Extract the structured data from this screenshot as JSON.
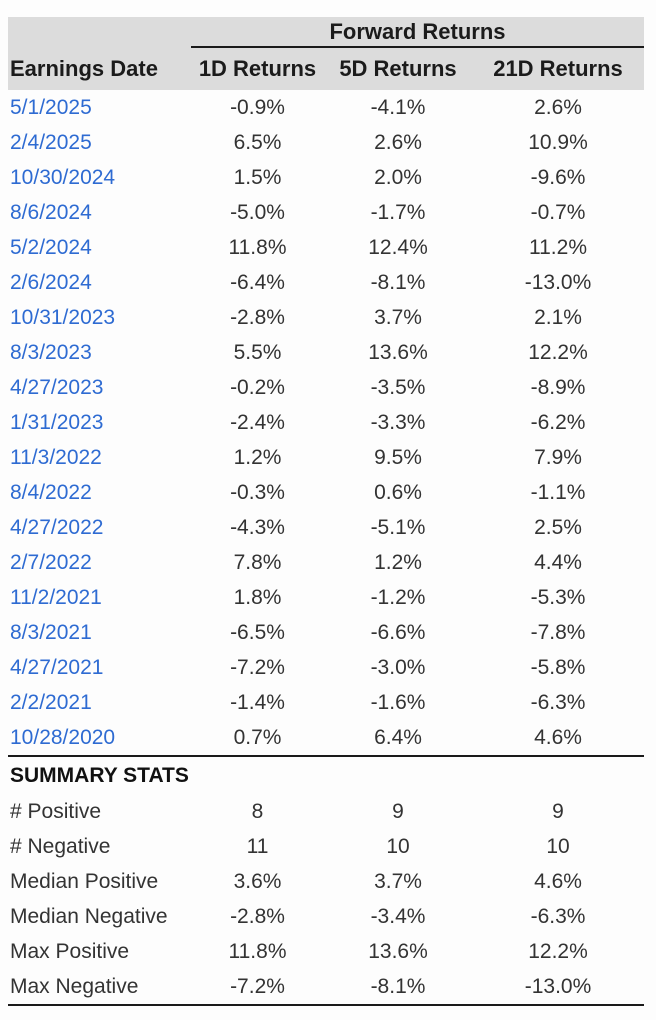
{
  "colors": {
    "page_background": "#fdfdfd",
    "header_background": "#dcdcdc",
    "rule": "#1a1a1a",
    "date_link": "#2e6bd2",
    "value_text": "#333333"
  },
  "table": {
    "group_header": "Forward Returns",
    "columns": [
      "Earnings Date",
      "1D Returns",
      "5D Returns",
      "21D Returns"
    ],
    "rows": [
      [
        "5/1/2025",
        "-0.9%",
        "-4.1%",
        "2.6%"
      ],
      [
        "2/4/2025",
        "6.5%",
        "2.6%",
        "10.9%"
      ],
      [
        "10/30/2024",
        "1.5%",
        "2.0%",
        "-9.6%"
      ],
      [
        "8/6/2024",
        "-5.0%",
        "-1.7%",
        "-0.7%"
      ],
      [
        "5/2/2024",
        "11.8%",
        "12.4%",
        "11.2%"
      ],
      [
        "2/6/2024",
        "-6.4%",
        "-8.1%",
        "-13.0%"
      ],
      [
        "10/31/2023",
        "-2.8%",
        "3.7%",
        "2.1%"
      ],
      [
        "8/3/2023",
        "5.5%",
        "13.6%",
        "12.2%"
      ],
      [
        "4/27/2023",
        "-0.2%",
        "-3.5%",
        "-8.9%"
      ],
      [
        "1/31/2023",
        "-2.4%",
        "-3.3%",
        "-6.2%"
      ],
      [
        "11/3/2022",
        "1.2%",
        "9.5%",
        "7.9%"
      ],
      [
        "8/4/2022",
        "-0.3%",
        "0.6%",
        "-1.1%"
      ],
      [
        "4/27/2022",
        "-4.3%",
        "-5.1%",
        "2.5%"
      ],
      [
        "2/7/2022",
        "7.8%",
        "1.2%",
        "4.4%"
      ],
      [
        "11/2/2021",
        "1.8%",
        "-1.2%",
        "-5.3%"
      ],
      [
        "8/3/2021",
        "-6.5%",
        "-6.6%",
        "-7.8%"
      ],
      [
        "4/27/2021",
        "-7.2%",
        "-3.0%",
        "-5.8%"
      ],
      [
        "2/2/2021",
        "-1.4%",
        "-1.6%",
        "-6.3%"
      ],
      [
        "10/28/2020",
        "0.7%",
        "6.4%",
        "4.6%"
      ]
    ],
    "summary_title": "SUMMARY STATS",
    "summary_rows": [
      [
        "# Positive",
        "8",
        "9",
        "9"
      ],
      [
        "# Negative",
        "11",
        "10",
        "10"
      ],
      [
        "Median Positive",
        "3.6%",
        "3.7%",
        "4.6%"
      ],
      [
        "Median Negative",
        "-2.8%",
        "-3.4%",
        "-6.3%"
      ],
      [
        "Max Positive",
        "11.8%",
        "13.6%",
        "12.2%"
      ],
      [
        "Max Negative",
        "-7.2%",
        "-8.1%",
        "-13.0%"
      ]
    ]
  }
}
